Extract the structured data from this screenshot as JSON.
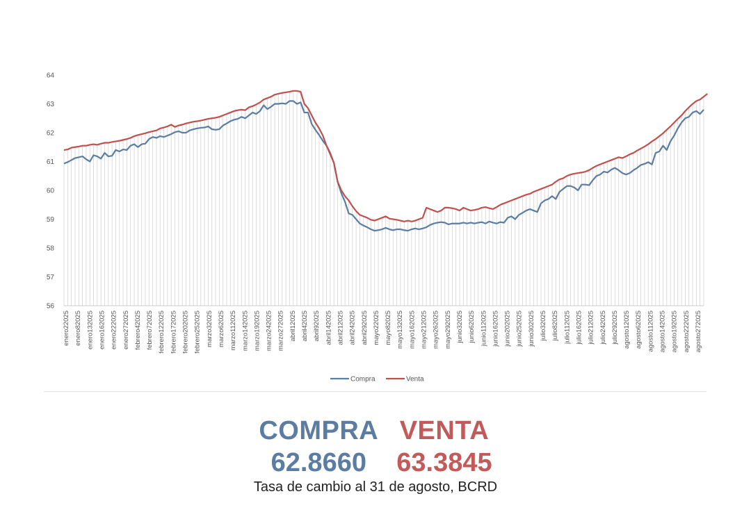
{
  "chart_data": {
    "type": "line",
    "title": "",
    "xlabel": "",
    "ylabel": "",
    "ylim": [
      56,
      64
    ],
    "yticks": [
      56,
      57,
      58,
      59,
      60,
      61,
      62,
      63,
      64
    ],
    "grid": "vertical lines at each data point",
    "legend_position": "bottom-center",
    "xticks": [
      "enero22025",
      "enero82025",
      "enero132025",
      "enero162025",
      "enero222025",
      "enero272025",
      "febrero42025",
      "febrero72025",
      "febrero122025",
      "febrero172025",
      "febrero202025",
      "febrero252025",
      "marzo32025",
      "marzo62025",
      "marzo112025",
      "marzo142025",
      "marzo192025",
      "marzo242025",
      "marzo272025",
      "abril12025",
      "abril42025",
      "abril92025",
      "abril142025",
      "abril212025",
      "abril242025",
      "abril292025",
      "mayo22025",
      "mayo82025",
      "mayo132025",
      "mayo162025",
      "mayo212025",
      "mayo262025",
      "mayo292025",
      "junio32025",
      "junio62025",
      "junio112025",
      "junio162025",
      "junio202025",
      "junio252025",
      "junio302025",
      "julio32025",
      "julio82025",
      "julio112025",
      "julio162025",
      "julio212025",
      "julio242025",
      "julio292025",
      "agosto12025",
      "agosto62025",
      "agosto112025",
      "agosto142025",
      "agosto192025",
      "agosto222025",
      "agosto272025"
    ],
    "series": [
      {
        "name": "Compra",
        "color": "#5b7ca3",
        "values": [
          60.93,
          60.98,
          61.05,
          61.12,
          61.15,
          61.18,
          61.08,
          61.0,
          61.22,
          61.18,
          61.1,
          61.3,
          61.18,
          61.2,
          61.4,
          61.35,
          61.42,
          61.4,
          61.55,
          61.6,
          61.5,
          61.6,
          61.62,
          61.78,
          61.85,
          61.82,
          61.88,
          61.85,
          61.9,
          61.95,
          62.02,
          62.05,
          62.0,
          62.0,
          62.08,
          62.12,
          62.15,
          62.17,
          62.18,
          62.22,
          62.12,
          62.1,
          62.12,
          62.25,
          62.32,
          62.4,
          62.45,
          62.48,
          62.55,
          62.5,
          62.6,
          62.7,
          62.65,
          62.75,
          62.95,
          62.82,
          62.9,
          63.0,
          63.0,
          63.02,
          63.0,
          63.1,
          63.1,
          63.0,
          63.05,
          62.7,
          62.7,
          62.3,
          62.1,
          61.92,
          61.72,
          61.55,
          61.3,
          60.95,
          60.3,
          59.9,
          59.6,
          59.2,
          59.15,
          59.0,
          58.85,
          58.78,
          58.72,
          58.65,
          58.6,
          58.62,
          58.65,
          58.7,
          58.65,
          58.62,
          58.65,
          58.65,
          58.62,
          58.6,
          58.65,
          58.68,
          58.65,
          58.68,
          58.72,
          58.8,
          58.85,
          58.88,
          58.9,
          58.88,
          58.82,
          58.85,
          58.85,
          58.85,
          58.88,
          58.85,
          58.88,
          58.85,
          58.88,
          58.9,
          58.85,
          58.92,
          58.88,
          58.85,
          58.9,
          58.88,
          59.05,
          59.1,
          59.0,
          59.15,
          59.22,
          59.3,
          59.35,
          59.3,
          59.25,
          59.55,
          59.65,
          59.7,
          59.8,
          59.7,
          59.95,
          60.05,
          60.15,
          60.15,
          60.1,
          60.0,
          60.2,
          60.2,
          60.18,
          60.35,
          60.5,
          60.55,
          60.65,
          60.62,
          60.72,
          60.78,
          60.7,
          60.6,
          60.55,
          60.6,
          60.7,
          60.78,
          60.88,
          60.92,
          60.98,
          60.9,
          61.3,
          61.35,
          61.55,
          61.4,
          61.7,
          61.9,
          62.15,
          62.35,
          62.5,
          62.55,
          62.7,
          62.75,
          62.65,
          62.8
        ]
      },
      {
        "name": "Venta",
        "color": "#c0504d",
        "values": [
          61.4,
          61.42,
          61.48,
          61.5,
          61.52,
          61.55,
          61.55,
          61.58,
          61.6,
          61.58,
          61.62,
          61.65,
          61.65,
          61.68,
          61.7,
          61.72,
          61.75,
          61.78,
          61.82,
          61.88,
          61.92,
          61.95,
          61.98,
          62.02,
          62.05,
          62.08,
          62.15,
          62.18,
          62.22,
          62.28,
          62.2,
          62.25,
          62.28,
          62.32,
          62.35,
          62.38,
          62.4,
          62.42,
          62.45,
          62.48,
          62.5,
          62.52,
          62.55,
          62.6,
          62.65,
          62.7,
          62.75,
          62.78,
          62.8,
          62.78,
          62.88,
          62.92,
          62.98,
          63.05,
          63.15,
          63.2,
          63.25,
          63.32,
          63.35,
          63.38,
          63.4,
          63.42,
          63.45,
          63.45,
          63.42,
          63.0,
          62.85,
          62.6,
          62.35,
          62.15,
          61.9,
          61.55,
          61.25,
          60.95,
          60.3,
          60.0,
          59.8,
          59.65,
          59.45,
          59.28,
          59.15,
          59.1,
          59.05,
          58.98,
          58.95,
          59.0,
          59.05,
          59.1,
          59.02,
          59.0,
          58.98,
          58.95,
          58.92,
          58.95,
          58.92,
          58.95,
          59.0,
          59.05,
          59.4,
          59.35,
          59.3,
          59.25,
          59.3,
          59.4,
          59.4,
          59.38,
          59.35,
          59.3,
          59.4,
          59.35,
          59.3,
          59.32,
          59.35,
          59.4,
          59.42,
          59.38,
          59.35,
          59.42,
          59.5,
          59.55,
          59.6,
          59.65,
          59.7,
          59.75,
          59.8,
          59.85,
          59.88,
          59.95,
          60.0,
          60.05,
          60.1,
          60.15,
          60.2,
          60.3,
          60.38,
          60.42,
          60.5,
          60.55,
          60.58,
          60.6,
          60.62,
          60.65,
          60.7,
          60.78,
          60.85,
          60.9,
          60.95,
          61.0,
          61.05,
          61.1,
          61.15,
          61.12,
          61.18,
          61.25,
          61.3,
          61.38,
          61.45,
          61.52,
          61.6,
          61.7,
          61.78,
          61.88,
          61.98,
          62.1,
          62.22,
          62.35,
          62.48,
          62.6,
          62.75,
          62.88,
          63.0,
          63.1,
          63.15,
          63.25,
          63.35
        ]
      }
    ]
  },
  "summary": {
    "compra_label": "COMPRA",
    "venta_label": "VENTA",
    "compra_value": "62.8660",
    "venta_value": "63.3845",
    "caption": "Tasa de cambio al 31 de agosto, BCRD",
    "compra_color": "#5b7ca3",
    "venta_color": "#c25a5a"
  }
}
